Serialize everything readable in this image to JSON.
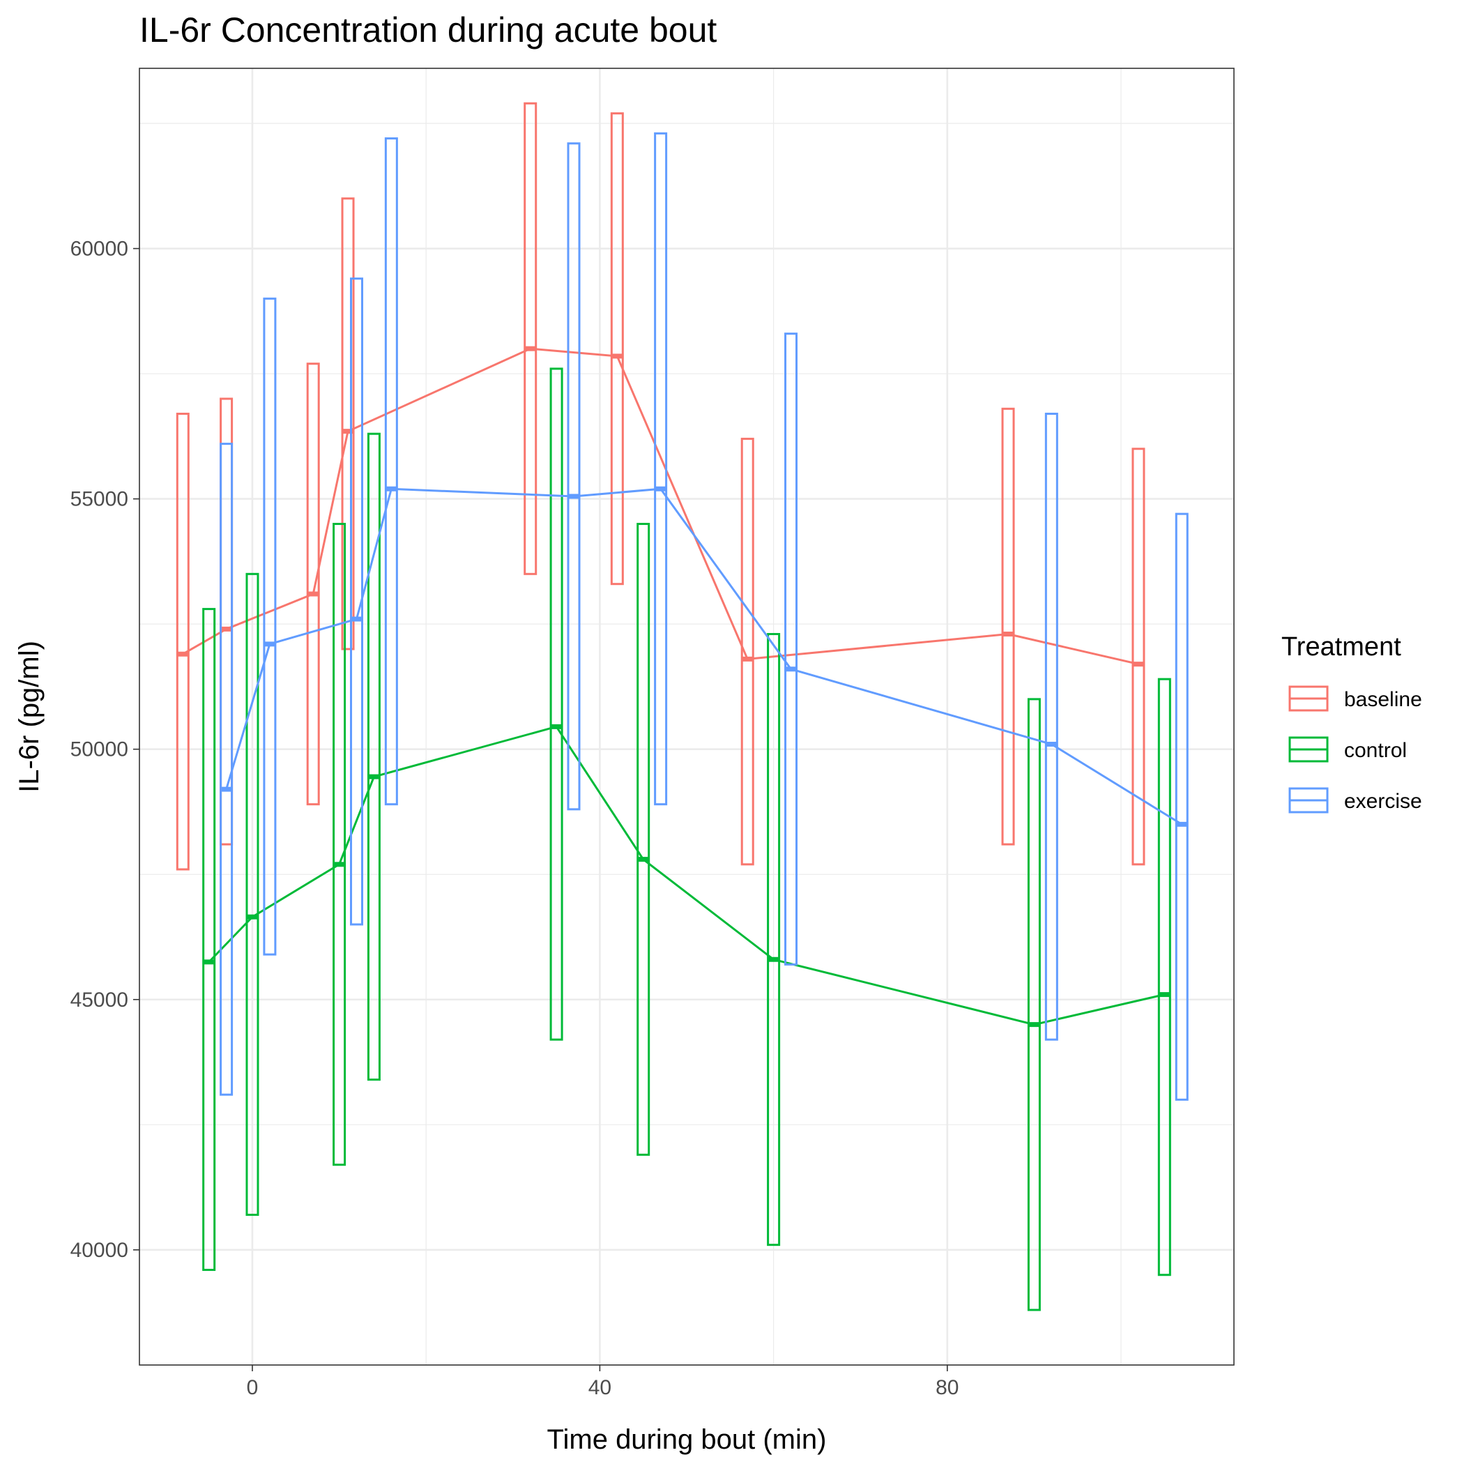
{
  "chart_data": {
    "type": "line",
    "title": "IL-6r Concentration during acute bout",
    "xlabel": "Time during bout (min)",
    "ylabel": "IL-6r (pg/ml)",
    "xlim": [
      -13,
      113
    ],
    "ylim": [
      37700,
      63600
    ],
    "x_ticks": [
      0,
      40,
      80
    ],
    "x_tick_labels": [
      "0",
      "40",
      "80"
    ],
    "y_ticks": [
      40000,
      45000,
      50000,
      55000,
      60000
    ],
    "y_tick_labels": [
      "40000",
      "45000",
      "50000",
      "55000",
      "60000"
    ],
    "grid": true,
    "x": [
      -5,
      0,
      10,
      14,
      35,
      45,
      60,
      90,
      105
    ],
    "legend": {
      "title": "Treatment",
      "position": "right"
    },
    "series": [
      {
        "name": "baseline",
        "color": "#F8766D",
        "values": [
          51900,
          52400,
          53100,
          56350,
          58000,
          57850,
          51800,
          52300,
          51700
        ],
        "lower": [
          47600,
          48100,
          48900,
          52000,
          53500,
          53300,
          47700,
          48100,
          47700
        ],
        "upper": [
          56700,
          57000,
          57700,
          61000,
          62900,
          62700,
          56200,
          56800,
          56000
        ]
      },
      {
        "name": "control",
        "color": "#00BA38",
        "values": [
          45750,
          46650,
          47700,
          49450,
          50450,
          47800,
          45800,
          44500,
          45100
        ],
        "lower": [
          39600,
          40700,
          41700,
          43400,
          44200,
          41900,
          40100,
          38800,
          39500
        ],
        "upper": [
          52800,
          53500,
          54500,
          56300,
          57600,
          54500,
          52300,
          51000,
          51400
        ]
      },
      {
        "name": "exercise",
        "color": "#619CFF",
        "values": [
          49200,
          52100,
          52600,
          55200,
          55050,
          55200,
          51600,
          50100,
          48500
        ],
        "lower": [
          43100,
          45900,
          46500,
          48900,
          48800,
          48900,
          45700,
          44200,
          43000
        ],
        "upper": [
          56100,
          59000,
          59400,
          62200,
          62100,
          62300,
          58300,
          56700,
          54700
        ]
      }
    ]
  }
}
